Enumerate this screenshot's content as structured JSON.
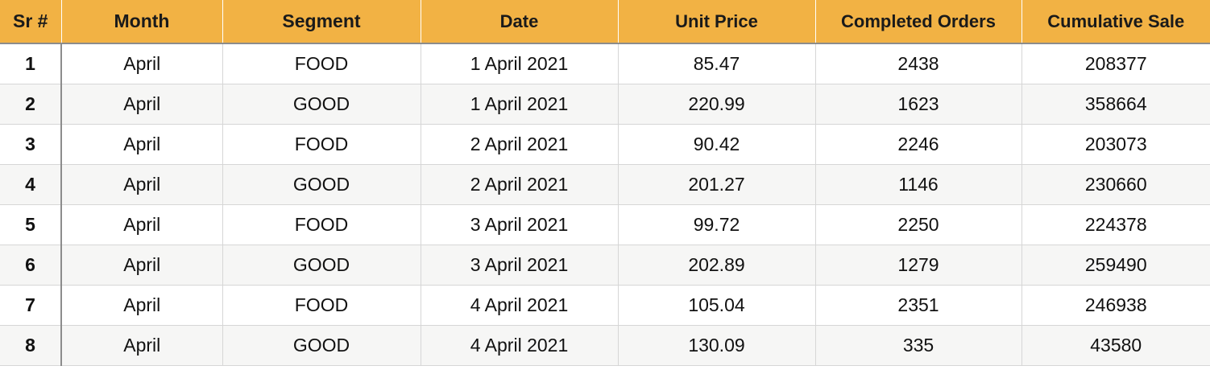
{
  "table": {
    "headers": [
      "Sr #",
      "Month",
      "Segment",
      "Date",
      "Unit Price",
      "Completed Orders",
      "Cumulative Sale"
    ],
    "rows": [
      [
        "1",
        "April",
        "FOOD",
        "1 April 2021",
        "85.47",
        "2438",
        "208377"
      ],
      [
        "2",
        "April",
        "GOOD",
        "1 April 2021",
        "220.99",
        "1623",
        "358664"
      ],
      [
        "3",
        "April",
        "FOOD",
        "2 April 2021",
        "90.42",
        "2246",
        "203073"
      ],
      [
        "4",
        "April",
        "GOOD",
        "2 April 2021",
        "201.27",
        "1146",
        "230660"
      ],
      [
        "5",
        "April",
        "FOOD",
        "3 April 2021",
        "99.72",
        "2250",
        "224378"
      ],
      [
        "6",
        "April",
        "GOOD",
        "3 April 2021",
        "202.89",
        "1279",
        "259490"
      ],
      [
        "7",
        "April",
        "FOOD",
        "4 April 2021",
        "105.04",
        "2351",
        "246938"
      ],
      [
        "8",
        "April",
        "GOOD",
        "4 April 2021",
        "130.09",
        "335",
        "43580"
      ]
    ]
  },
  "colors": {
    "header_bg": "#f2b244",
    "alt_row_bg": "#f6f6f5",
    "grid_line": "#d6d6d6"
  }
}
